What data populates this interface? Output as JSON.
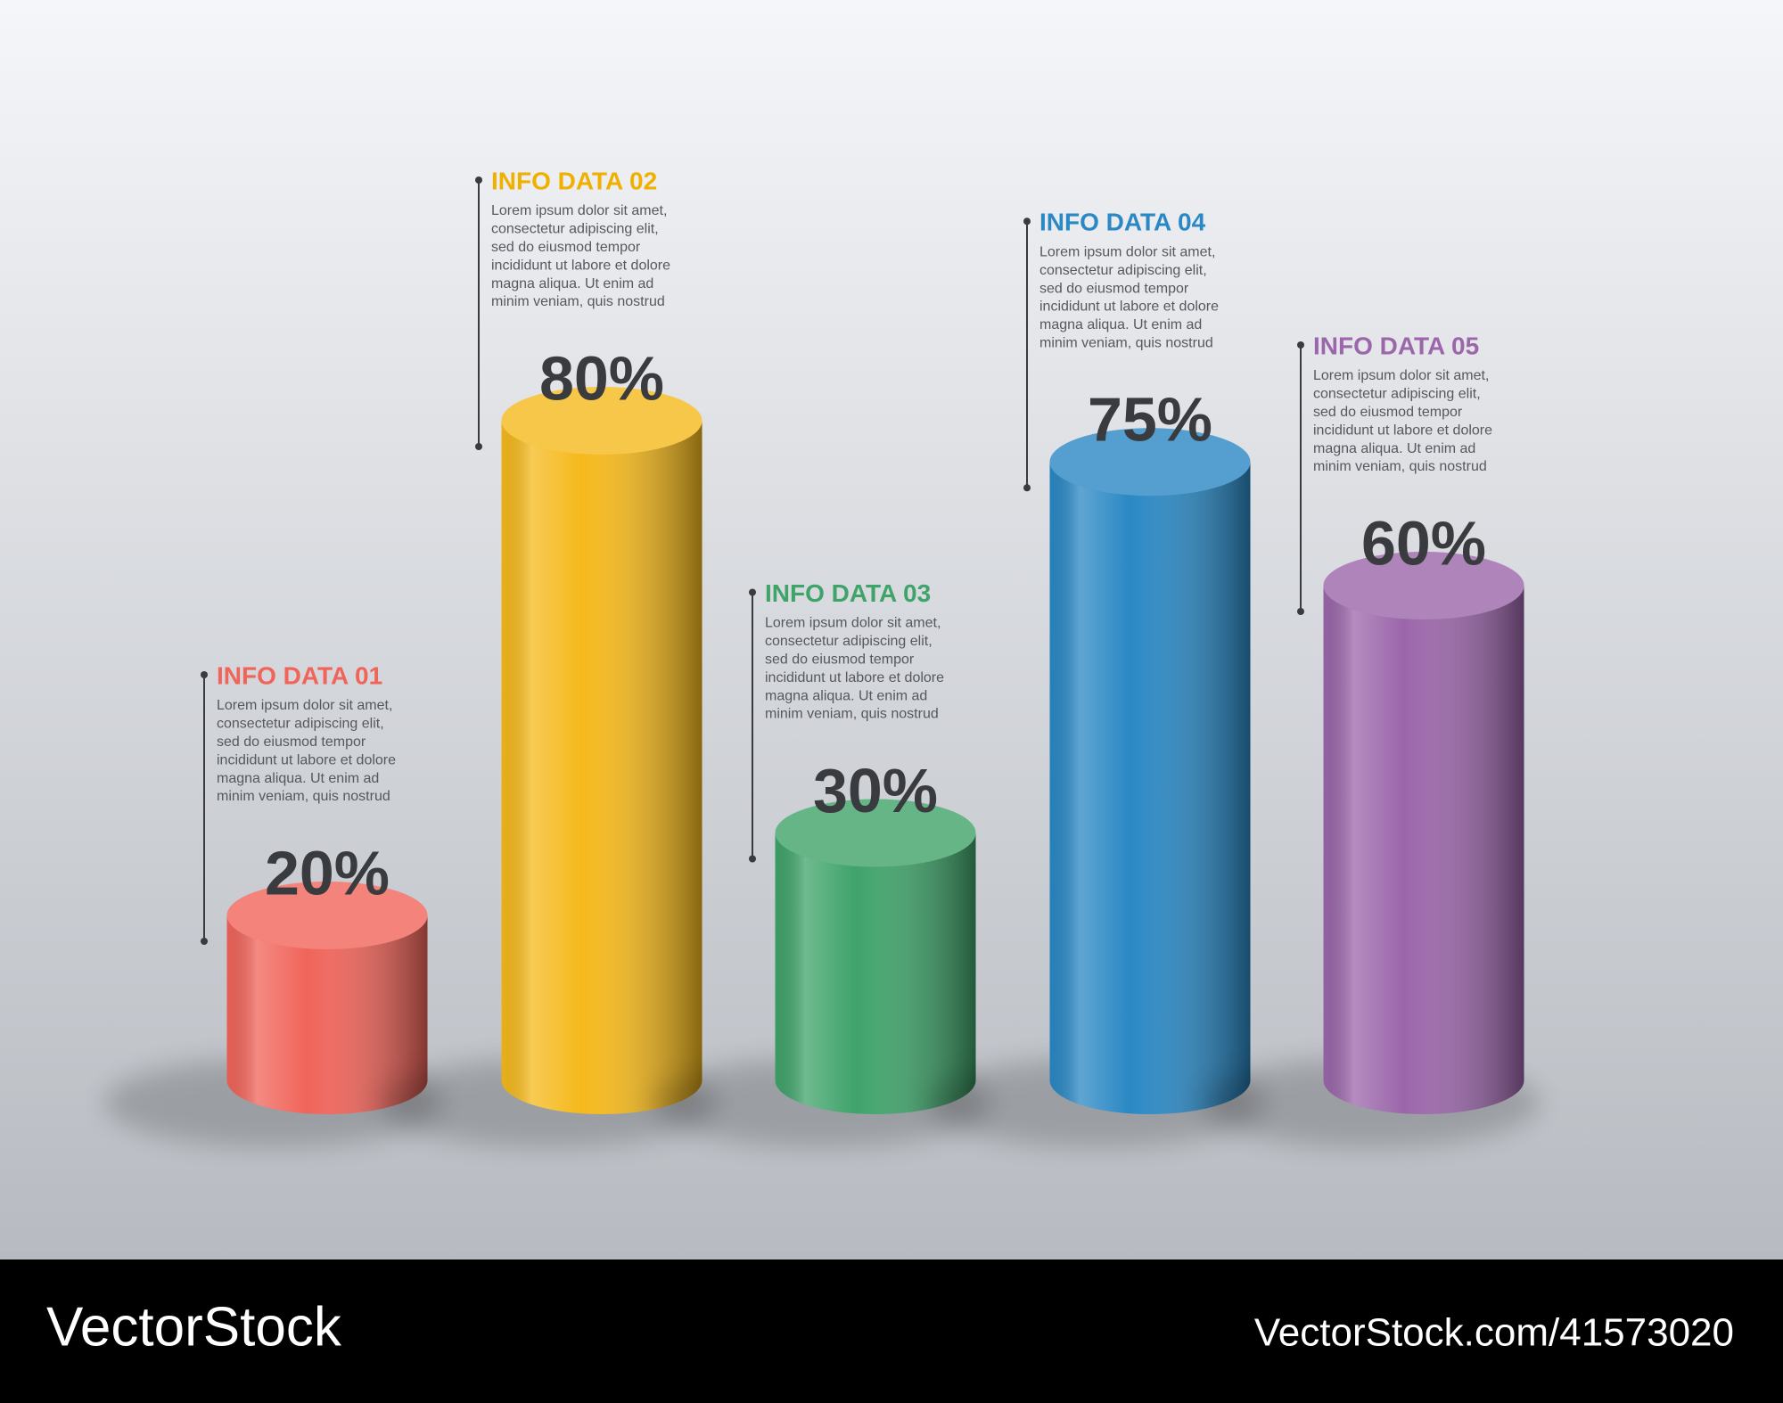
{
  "chart_data": {
    "type": "bar",
    "categories": [
      "INFO DATA 01",
      "INFO DATA 02",
      "INFO DATA 03",
      "INFO DATA 04",
      "INFO DATA 05"
    ],
    "values": [
      20,
      80,
      30,
      75,
      60
    ],
    "value_labels": [
      "20%",
      "80%",
      "30%",
      "75%",
      "60%"
    ],
    "colors": [
      "#f0645a",
      "#f5b91c",
      "#3fa36a",
      "#2a88c4",
      "#9b66aa"
    ],
    "label_colors": [
      "#f0645a",
      "#f0b000",
      "#3fa36a",
      "#2a88c4",
      "#9b66aa"
    ],
    "descriptions": [
      [
        "Lorem ipsum dolor sit amet,",
        "consectetur adipiscing elit,",
        "sed do eiusmod tempor",
        "incididunt ut labore et dolore",
        "magna aliqua. Ut enim ad",
        "minim veniam, quis nostrud"
      ],
      [
        "Lorem ipsum dolor sit amet,",
        "consectetur adipiscing elit,",
        "sed do eiusmod tempor",
        "incididunt ut labore et dolore",
        "magna aliqua. Ut enim ad",
        "minim veniam, quis nostrud"
      ],
      [
        "Lorem ipsum dolor sit amet,",
        "consectetur adipiscing elit,",
        "sed do eiusmod tempor",
        "incididunt ut labore et dolore",
        "magna aliqua. Ut enim ad",
        "minim veniam, quis nostrud"
      ],
      [
        "Lorem ipsum dolor sit amet,",
        "consectetur adipiscing elit,",
        "sed do eiusmod tempor",
        "incididunt ut labore et dolore",
        "magna aliqua. Ut enim ad",
        "minim veniam, quis nostrud"
      ],
      [
        "Lorem ipsum dolor sit amet,",
        "consectetur adipiscing elit,",
        "sed do eiusmod tempor",
        "incididunt ut labore et dolore",
        "magna aliqua. Ut enim ad",
        "minim veniam, quis nostrud"
      ]
    ],
    "ylim": [
      0,
      100
    ]
  },
  "watermark": {
    "brand": "VectorStock",
    "url": "VectorStock.com/41573020"
  }
}
